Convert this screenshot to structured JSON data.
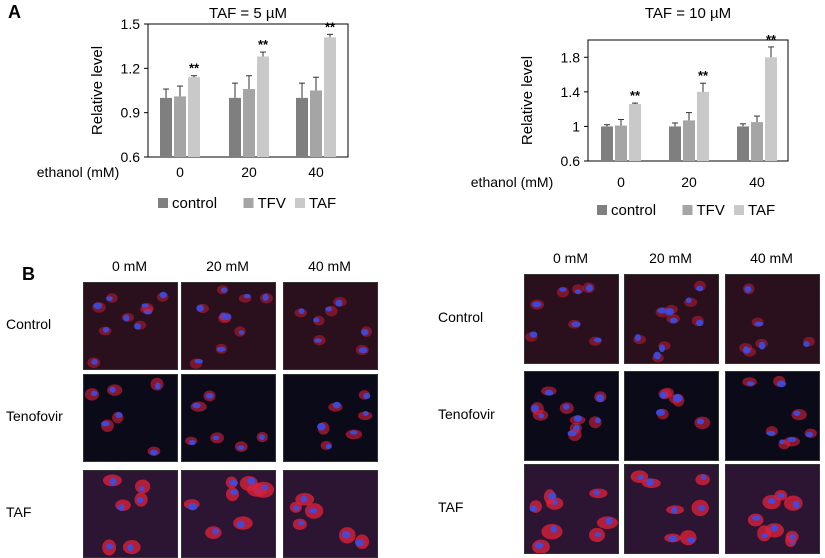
{
  "panel_labels": {
    "a": "A",
    "b": "B"
  },
  "colors": {
    "control": "#7f7f7f",
    "TFV": "#a5a5a5",
    "TAF": "#c9c9c9",
    "error_bar": "#333333"
  },
  "chart_data": [
    {
      "type": "bar",
      "title": "TAF = 5 µM",
      "ylabel": "Relative level",
      "xlabel": "ethanol (mM)",
      "categories": [
        "0",
        "20",
        "40"
      ],
      "ylim": [
        0.6,
        1.5
      ],
      "yticks": [
        "0.6",
        "0.9",
        "1.2",
        "1.5"
      ],
      "series": [
        {
          "name": "control",
          "values": [
            1.0,
            1.0,
            1.0
          ],
          "errors": [
            0.06,
            0.1,
            0.1
          ]
        },
        {
          "name": "TFV",
          "values": [
            1.01,
            1.06,
            1.05
          ],
          "errors": [
            0.07,
            0.09,
            0.09
          ]
        },
        {
          "name": "TAF",
          "values": [
            1.14,
            1.28,
            1.41
          ],
          "errors": [
            0.01,
            0.03,
            0.02
          ]
        }
      ],
      "annotations": [
        {
          "series": "TAF",
          "category": "0",
          "text": "**"
        },
        {
          "series": "TAF",
          "category": "20",
          "text": "**"
        },
        {
          "series": "TAF",
          "category": "40",
          "text": "**"
        }
      ],
      "legend": "bottom",
      "grid": false
    },
    {
      "type": "bar",
      "title": "TAF = 10 µM",
      "ylabel": "Relative level",
      "xlabel": "ethanol (mM)",
      "categories": [
        "0",
        "20",
        "40"
      ],
      "ylim": [
        0.6,
        2.0
      ],
      "yticks": [
        "0.6",
        "1",
        "1.4",
        "1.8"
      ],
      "series": [
        {
          "name": "control",
          "values": [
            1.0,
            1.0,
            1.0
          ],
          "errors": [
            0.02,
            0.04,
            0.03
          ]
        },
        {
          "name": "TFV",
          "values": [
            1.01,
            1.07,
            1.05
          ],
          "errors": [
            0.07,
            0.09,
            0.07
          ]
        },
        {
          "name": "TAF",
          "values": [
            1.26,
            1.4,
            1.8
          ],
          "errors": [
            0.01,
            0.1,
            0.12
          ]
        }
      ],
      "annotations": [
        {
          "series": "TAF",
          "category": "0",
          "text": "**"
        },
        {
          "series": "TAF",
          "category": "20",
          "text": "**"
        },
        {
          "series": "TAF",
          "category": "40",
          "text": "**"
        }
      ],
      "legend": "bottom",
      "grid": false
    }
  ],
  "micrographs": {
    "columns": [
      "0 mM",
      "20 mM",
      "40 mM"
    ],
    "rows": [
      "Control",
      "Tenofovir",
      "TAF"
    ]
  }
}
